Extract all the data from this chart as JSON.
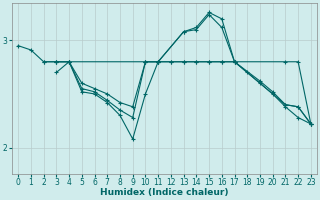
{
  "title": "",
  "xlabel": "Humidex (Indice chaleur)",
  "bg_color": "#d0ecec",
  "line_color": "#006666",
  "grid_color": "#c0d8d8",
  "xlim": [
    -0.5,
    23.5
  ],
  "ylim": [
    1.75,
    3.35
  ],
  "lines": [
    {
      "x": [
        0,
        1,
        2,
        3,
        4,
        10,
        11,
        12,
        13,
        14,
        15,
        16,
        17,
        21,
        22,
        23
      ],
      "y": [
        2.95,
        2.91,
        2.8,
        2.8,
        2.8,
        2.8,
        2.8,
        2.8,
        2.8,
        2.8,
        2.8,
        2.8,
        2.8,
        2.8,
        2.8,
        2.22
      ]
    },
    {
      "x": [
        3,
        4,
        5,
        6,
        7,
        8,
        9,
        10,
        11,
        12,
        13,
        14,
        15,
        16,
        17,
        18,
        19,
        20,
        21,
        22,
        23
      ],
      "y": [
        2.8,
        2.8,
        2.6,
        2.55,
        2.5,
        2.42,
        2.38,
        2.8,
        2.8,
        2.8,
        2.8,
        2.8,
        2.8,
        2.8,
        2.8,
        2.7,
        2.6,
        2.5,
        2.38,
        2.28,
        2.22
      ]
    },
    {
      "x": [
        2,
        3,
        4,
        5,
        6,
        7,
        8,
        9,
        10,
        11,
        13,
        14,
        15,
        16,
        17,
        21,
        22,
        23
      ],
      "y": [
        2.8,
        2.8,
        2.8,
        2.55,
        2.52,
        2.44,
        2.35,
        2.28,
        2.8,
        2.8,
        3.08,
        3.1,
        3.24,
        3.12,
        2.8,
        2.4,
        2.38,
        2.22
      ]
    },
    {
      "x": [
        3,
        4,
        5,
        6,
        7,
        8,
        9,
        10,
        11,
        13,
        14,
        15,
        16,
        17,
        19,
        20,
        21,
        22,
        23
      ],
      "y": [
        2.7,
        2.8,
        2.52,
        2.5,
        2.42,
        2.3,
        2.08,
        2.5,
        2.8,
        3.08,
        3.12,
        3.26,
        3.2,
        2.8,
        2.62,
        2.52,
        2.4,
        2.38,
        2.22
      ]
    }
  ],
  "xticks": [
    0,
    1,
    2,
    3,
    4,
    5,
    6,
    7,
    8,
    9,
    10,
    11,
    12,
    13,
    14,
    15,
    16,
    17,
    18,
    19,
    20,
    21,
    22,
    23
  ],
  "yticks": [
    2.0,
    3.0
  ],
  "tick_fontsize": 5.5,
  "xlabel_fontsize": 6.5
}
